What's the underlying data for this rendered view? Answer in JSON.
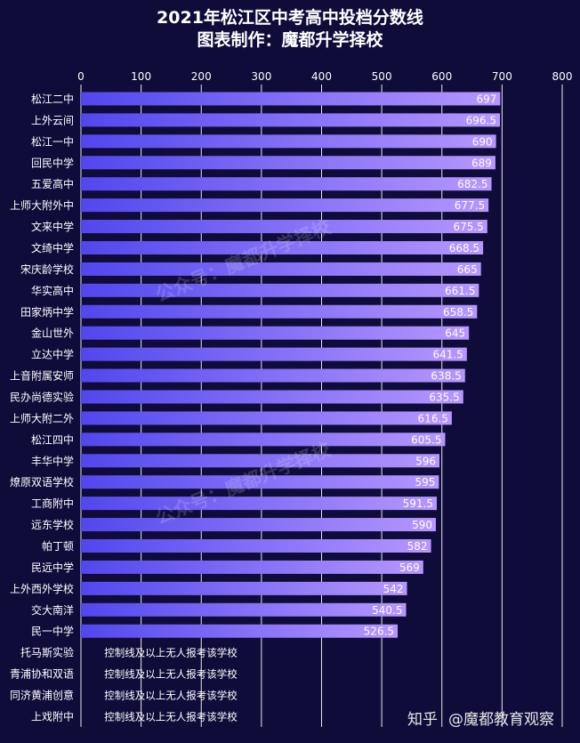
{
  "header": {
    "title_line1": "2021年松江区中考高中投档分数线",
    "title_line2": "图表制作：魔都升学择校"
  },
  "watermark": {
    "text": "公众号：魔都升学择校"
  },
  "brand": {
    "zhihu": "知乎",
    "account": "@魔都教育观察"
  },
  "colors": {
    "background": "#0f0c3a",
    "bar_start": "#5147ee",
    "bar_end": "#b697ff",
    "grid": "#ffffff"
  },
  "chart_data": {
    "type": "bar",
    "orientation": "horizontal",
    "title": "2021年松江区中考高中投档分数线",
    "subtitle": "图表制作：魔都升学择校",
    "xlim": [
      0,
      800
    ],
    "x_ticks": [
      0,
      100,
      200,
      300,
      400,
      500,
      600,
      700,
      800
    ],
    "x_axis_position": "top",
    "grid": true,
    "categories": [
      "松江二中",
      "上外云间",
      "松江一中",
      "回民中学",
      "五爱高中",
      "上师大附外中",
      "文来中学",
      "文绮中学",
      "宋庆龄学校",
      "华实高中",
      "田家炳中学",
      "金山世外",
      "立达中学",
      "上音附属安师",
      "民办尚德实验",
      "上师大附二外",
      "松江四中",
      "丰华中学",
      "燎原双语学校",
      "工商附中",
      "远东学校",
      "帕丁顿",
      "民远中学",
      "上外西外学校",
      "交大南洋",
      "民一中学",
      "托马斯实验",
      "青浦协和双语",
      "同济黄浦创意",
      "上戏附中"
    ],
    "values": [
      697,
      696.5,
      690,
      689,
      682.5,
      677.5,
      675.5,
      668.5,
      665,
      661.5,
      658.5,
      645,
      641.5,
      638.5,
      635.5,
      616.5,
      605.5,
      596,
      595,
      591.5,
      590,
      582,
      569,
      542,
      540.5,
      526.5,
      null,
      null,
      null,
      null
    ],
    "data_labels": [
      "697",
      "696.5",
      "690",
      "689",
      "682.5",
      "677.5",
      "675.5",
      "668.5",
      "665",
      "661.5",
      "658.5",
      "645",
      "641.5",
      "638.5",
      "635.5",
      "616.5",
      "605.5",
      "596",
      "595",
      "591.5",
      "590",
      "582",
      "569",
      "542",
      "540.5",
      "526.5",
      "控制线及以上无人报考该学校",
      "控制线及以上无人报考该学校",
      "控制线及以上无人报考该学校",
      "控制线及以上无人报考该学校"
    ]
  }
}
